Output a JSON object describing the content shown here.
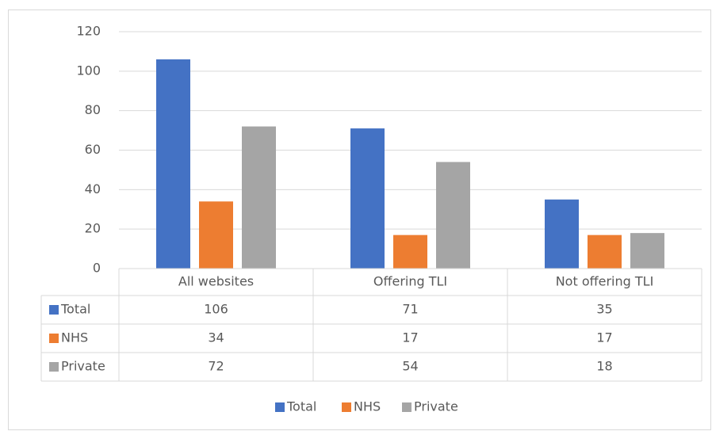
{
  "chart_data": {
    "type": "bar",
    "categories": [
      "All websites",
      "Offering TLI",
      "Not offering TLI"
    ],
    "series": [
      {
        "name": "Total",
        "color": "#4472c4",
        "values": [
          106,
          71,
          35
        ]
      },
      {
        "name": "NHS",
        "color": "#ed7d31",
        "values": [
          34,
          17,
          17
        ]
      },
      {
        "name": "Private",
        "color": "#a5a5a5",
        "values": [
          72,
          54,
          18
        ]
      }
    ],
    "ylim": [
      0,
      120
    ],
    "yticks": [
      0,
      20,
      40,
      60,
      80,
      100,
      120
    ],
    "grid": true,
    "legend": "bottom"
  }
}
